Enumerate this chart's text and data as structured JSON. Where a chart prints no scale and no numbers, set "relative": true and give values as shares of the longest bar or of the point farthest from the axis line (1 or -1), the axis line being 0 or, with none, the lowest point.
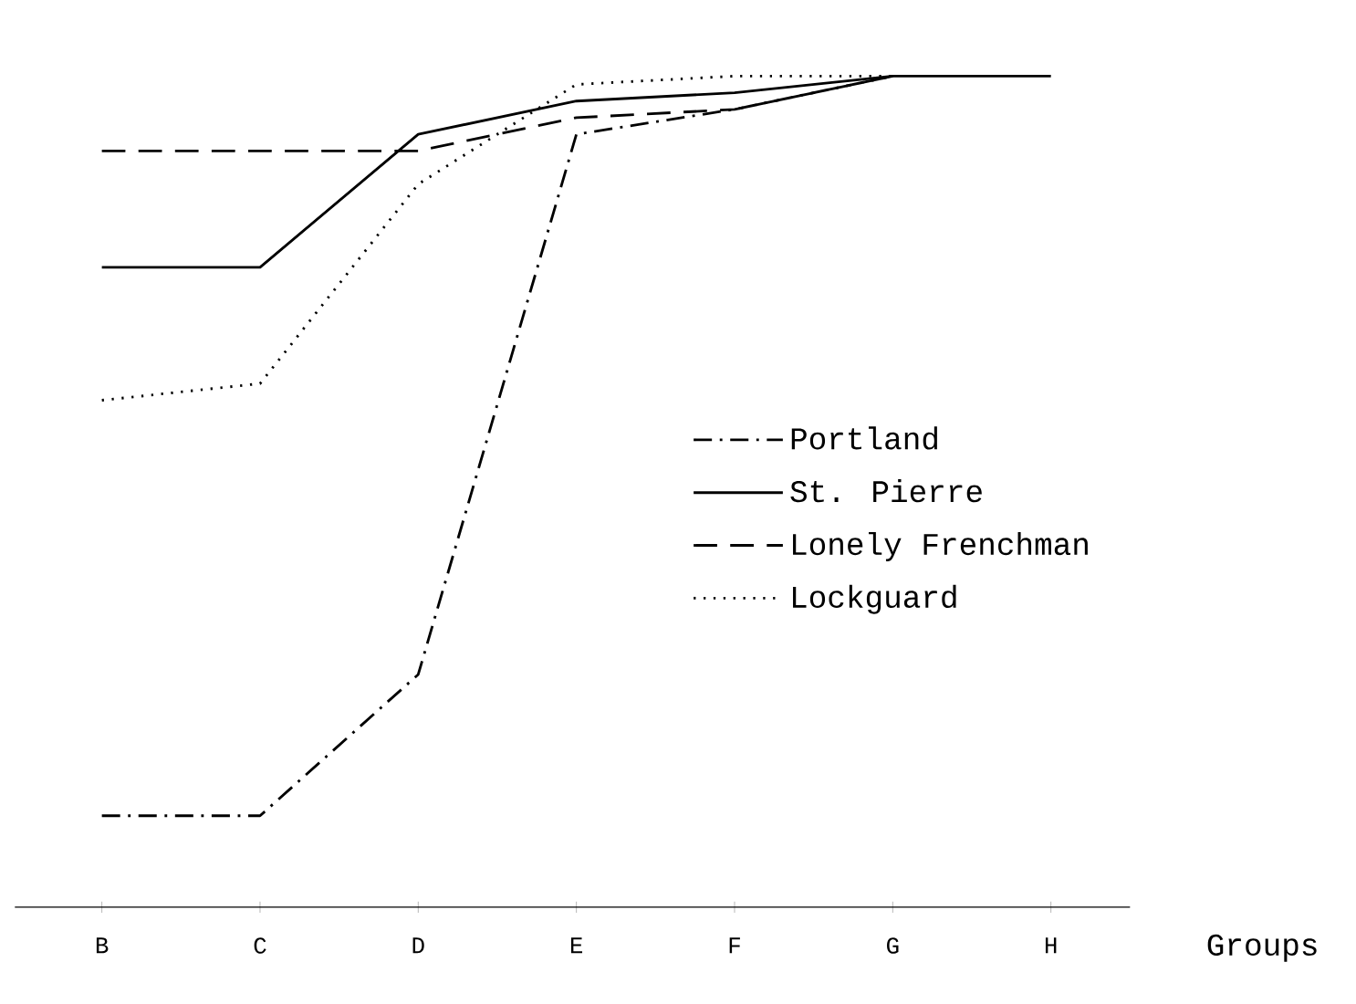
{
  "chart_data": {
    "type": "line",
    "relative": true,
    "xlabel": "Groups",
    "categories": [
      "B",
      "C",
      "D",
      "E",
      "F",
      "G",
      "H"
    ],
    "legend": "right",
    "series": [
      {
        "name": "Portland",
        "color": "#000000",
        "line_style": "dashdot",
        "values": [
          0.11,
          0.11,
          0.28,
          0.93,
          0.96,
          1.0,
          null
        ]
      },
      {
        "name": "St. Pierre",
        "color": "#000000",
        "line_style": "solid",
        "values": [
          0.77,
          0.77,
          0.93,
          0.97,
          0.98,
          1.0,
          1.0
        ]
      },
      {
        "name": "Lonely Frenchman",
        "color": "#000000",
        "line_style": "dashed",
        "values": [
          0.91,
          0.91,
          0.91,
          0.95,
          0.96,
          1.0,
          null
        ]
      },
      {
        "name": "Lockguard",
        "color": "#000000",
        "line_style": "dotted",
        "values": [
          0.61,
          0.63,
          0.87,
          0.99,
          1.0,
          1.0,
          null
        ]
      }
    ]
  }
}
